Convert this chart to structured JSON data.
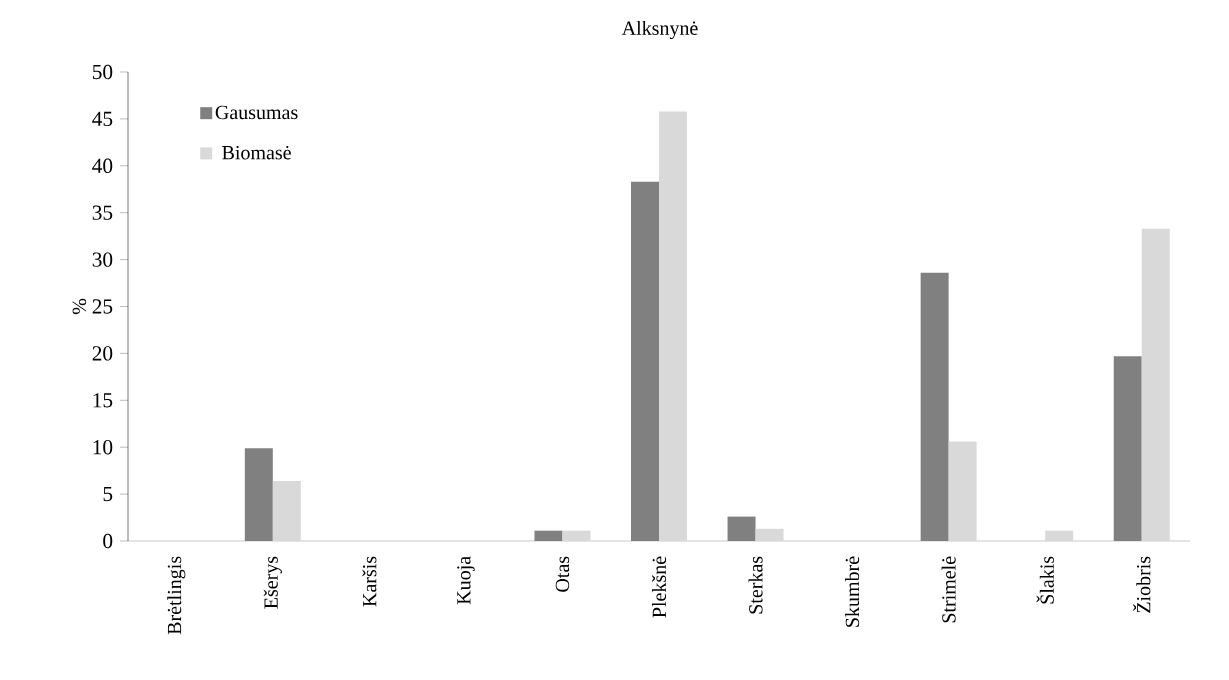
{
  "chart_data": {
    "type": "bar",
    "title": "Alksnynė",
    "ylabel": "%",
    "categories": [
      "Brėtlingis",
      "Ešerys",
      "Karšis",
      "Kuoja",
      "Otas",
      "Plekšnė",
      "Sterkas",
      "Skumbrė",
      "Strimelė",
      "Šlakis",
      "Žiobris"
    ],
    "series": [
      {
        "name": "Gausumas",
        "color": "#808080",
        "values": [
          0,
          9.9,
          0,
          0,
          1.1,
          38.3,
          2.6,
          0,
          28.6,
          0,
          19.7
        ]
      },
      {
        "name": "Biomasė",
        "color": "#d9d9d9",
        "values": [
          0,
          6.4,
          0,
          0,
          1.1,
          45.8,
          1.3,
          0,
          10.6,
          1.1,
          33.3
        ]
      }
    ],
    "ylim": [
      0,
      50
    ],
    "yticks": [
      0,
      5,
      10,
      15,
      20,
      25,
      30,
      35,
      40,
      45,
      50
    ],
    "grid": false,
    "legend": "top left"
  }
}
